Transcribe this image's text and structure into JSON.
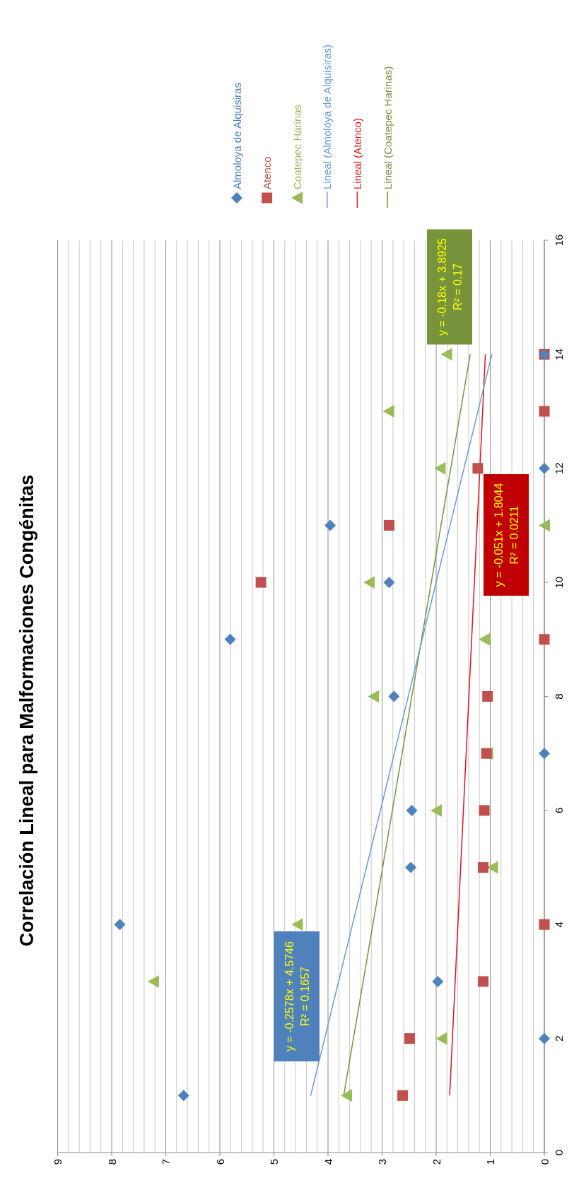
{
  "chart_data": {
    "type": "scatter",
    "title": "Correlación Lineal para Malformaciones Congénitas",
    "series": [
      {
        "name": "Almoloya de Alquisiras",
        "color": "#4f81bd",
        "marker": "diamond",
        "x": [
          6.67,
          0,
          1.97,
          7.85,
          2.47,
          2.45,
          0,
          2.78,
          5.81,
          2.87,
          3.96,
          0,
          null,
          0
        ],
        "values": [
          1,
          2,
          3,
          4,
          5,
          6,
          7,
          8,
          9,
          10,
          11,
          12,
          null,
          14
        ]
      },
      {
        "name": "Atenco",
        "color": "#c0504d",
        "marker": "square",
        "x": [
          2.62,
          2.49,
          1.13,
          0,
          1.13,
          1.11,
          1.07,
          1.05,
          0,
          5.24,
          2.87,
          1.23,
          0,
          0
        ],
        "values": [
          1,
          2,
          3,
          4,
          5,
          6,
          7,
          8,
          9,
          10,
          11,
          12,
          13,
          14
        ]
      },
      {
        "name": "Coatepec Harinas",
        "color": "#9bbb59",
        "marker": "triangle",
        "x": [
          3.66,
          1.9,
          7.23,
          4.57,
          0.96,
          2.0,
          1.05,
          3.16,
          1.11,
          3.24,
          0,
          1.93,
          2.88,
          1.81
        ],
        "values": [
          1,
          2,
          3,
          4,
          5,
          6,
          7,
          8,
          9,
          10,
          11,
          12,
          13,
          14
        ]
      },
      {
        "name": "Lineal (Almoloya de Alquisiras)",
        "type": "line",
        "color": "#6a9bd8",
        "marker": "none",
        "x": [
          4.32,
          0.97
        ],
        "values": [
          1,
          14
        ]
      },
      {
        "name": "Lineal (Atenco)",
        "type": "line",
        "color": "#e0141e",
        "marker": "none",
        "x": [
          1.75,
          1.09
        ],
        "values": [
          1,
          14
        ]
      },
      {
        "name": "Lineal (Coatepec Harinas)",
        "type": "line",
        "color": "#77933c",
        "marker": "none",
        "x": [
          3.71,
          1.37
        ],
        "values": [
          1,
          14
        ]
      }
    ],
    "annotations": [
      "y = -0.2578x + 4.5746",
      "R² = 0.1657",
      "y = -0.051x + 1.8044",
      "R² = 0.0211",
      "y = -0.18x + 3.8925",
      "R² = 0.17"
    ],
    "ylim": [
      0,
      16
    ],
    "yticks": [
      0,
      2,
      4,
      6,
      8,
      10,
      12,
      14,
      16
    ],
    "xlim": [
      9,
      0
    ],
    "xticks": [
      0,
      {
        "value": 0.2,
        "label": null
      },
      {
        "value": 0.4,
        "label": null
      },
      {
        "value": 0.6,
        "label": null
      },
      {
        "value": 0.8,
        "label": null
      },
      1,
      {
        "value": 1.2,
        "label": null
      },
      {
        "value": 1.4,
        "label": null
      },
      {
        "value": 1.6,
        "label": null
      },
      {
        "value": 1.8,
        "label": null
      },
      2,
      {
        "value": 2.2,
        "label": null
      },
      {
        "value": 2.4,
        "label": null
      },
      {
        "value": 2.6,
        "label": null
      },
      {
        "value": 2.8,
        "label": null
      },
      3,
      {
        "value": 3.2,
        "label": null
      },
      {
        "value": 3.4,
        "label": null
      },
      {
        "value": 3.6,
        "label": null
      },
      {
        "value": 3.8,
        "label": null
      },
      4,
      {
        "value": 4.2,
        "label": null
      },
      {
        "value": 4.4,
        "label": null
      },
      {
        "value": 4.6,
        "label": null
      },
      {
        "value": 4.8,
        "label": null
      },
      5,
      {
        "value": 5.2,
        "label": null
      },
      {
        "value": 5.4,
        "label": null
      },
      {
        "value": 5.6,
        "label": null
      },
      {
        "value": 5.8,
        "label": null
      },
      6,
      {
        "value": 6.2,
        "label": null
      },
      {
        "value": 6.4,
        "label": null
      },
      {
        "value": 6.6,
        "label": null
      },
      {
        "value": 6.8,
        "label": null
      },
      7,
      {
        "value": 7.2,
        "label": null
      },
      {
        "value": 7.4,
        "label": null
      },
      {
        "value": 7.6,
        "label": null
      },
      {
        "value": 7.8,
        "label": null
      },
      8,
      {
        "value": 8.2,
        "label": null
      },
      {
        "value": 8.4,
        "label": null
      },
      {
        "value": 8.6,
        "label": null
      },
      {
        "value": 8.8,
        "label": null
      },
      9
    ],
    "grid": "x",
    "legend": "top"
  }
}
